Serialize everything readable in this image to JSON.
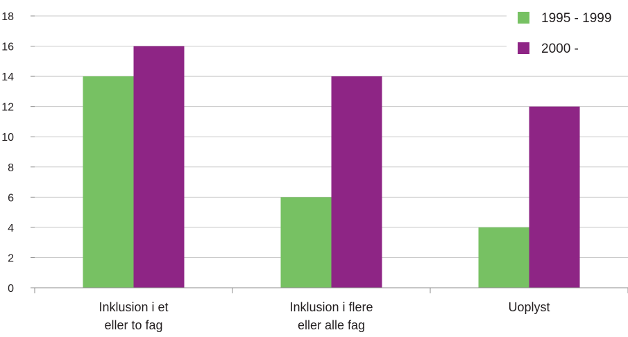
{
  "chart_data": {
    "type": "bar",
    "categories": [
      [
        "Inklusion i et",
        "eller to fag"
      ],
      [
        "Inklusion i flere",
        "eller alle fag"
      ],
      [
        "Uoplyst"
      ]
    ],
    "series": [
      {
        "name": "1995 - 1999",
        "color": "#77c163",
        "values": [
          14,
          6,
          4
        ]
      },
      {
        "name": "2000 -",
        "color": "#8e2585",
        "values": [
          16,
          14,
          12
        ]
      }
    ],
    "ylim": [
      0,
      18
    ],
    "yticks": [
      0,
      2,
      4,
      6,
      8,
      10,
      12,
      14,
      16,
      18
    ],
    "grid": true,
    "legend_position": "top-right"
  }
}
